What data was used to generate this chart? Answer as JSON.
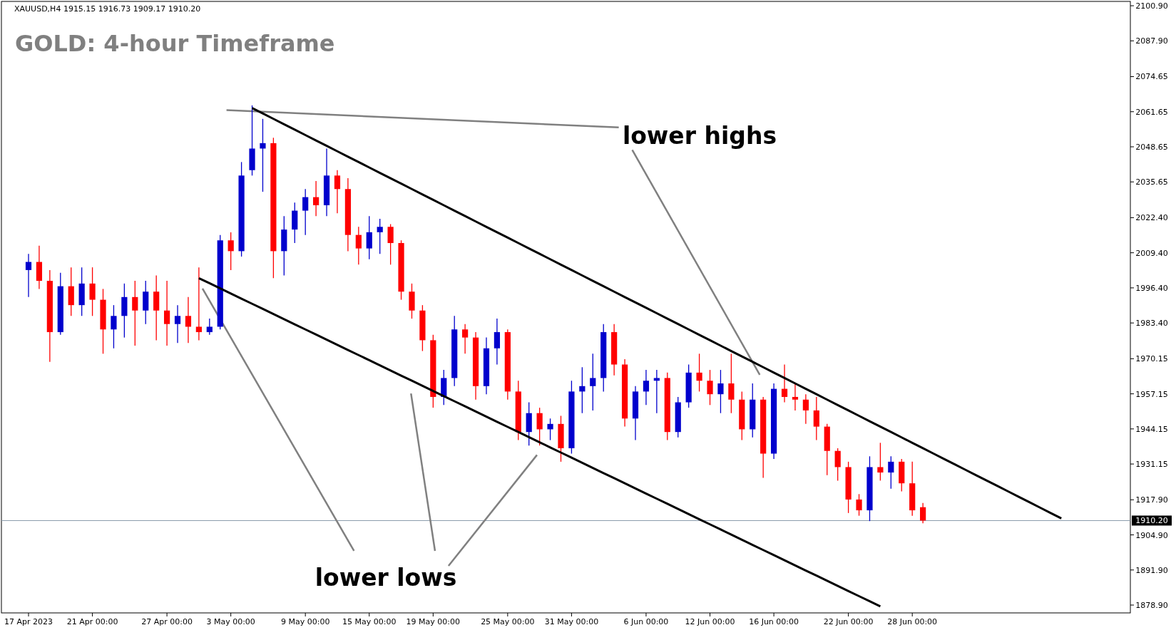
{
  "chart_data": {
    "type": "candlestick",
    "title": "GOLD: 4-hour Timeframe",
    "annotations": [
      "XAUUSD,H4  1915.15 1916.73 1909.17 1910.20",
      "lower highs",
      "lower lows"
    ],
    "categories": [
      "17 Apr 2023",
      null,
      null,
      null,
      null,
      null,
      "21 Apr 00:00",
      null,
      null,
      null,
      null,
      null,
      null,
      "27 Apr 00:00",
      null,
      null,
      null,
      null,
      null,
      "3 May 00:00",
      null,
      null,
      null,
      null,
      null,
      null,
      "9 May 00:00",
      null,
      null,
      null,
      null,
      null,
      "15 May 00:00",
      null,
      null,
      null,
      null,
      null,
      "19 May 00:00",
      null,
      null,
      null,
      null,
      null,
      null,
      "25 May 00:00",
      null,
      null,
      null,
      null,
      null,
      "31 May 00:00",
      null,
      null,
      null,
      null,
      null,
      null,
      "6 Jun 00:00",
      null,
      null,
      null,
      null,
      null,
      "12 Jun 00:00",
      null,
      null,
      null,
      null,
      null,
      "16 Jun 00:00",
      null,
      null,
      null,
      null,
      null,
      null,
      "22 Jun 00:00",
      null,
      null,
      null,
      null,
      null,
      "28 Jun 00:00",
      null,
      null,
      null,
      null,
      null,
      null,
      null,
      null,
      null,
      null,
      null,
      null,
      null,
      null
    ],
    "ohlc": [
      [
        2003,
        2009,
        1993,
        2006
      ],
      [
        2006,
        2012,
        1996,
        1999
      ],
      [
        1999,
        2003,
        1969,
        1980
      ],
      [
        1980,
        2002,
        1979,
        1997
      ],
      [
        1997,
        2004,
        1986,
        1990
      ],
      [
        1990,
        2004,
        1986,
        1998
      ],
      [
        1998,
        2004,
        1986,
        1992
      ],
      [
        1992,
        1996,
        1972,
        1981
      ],
      [
        1981,
        1990,
        1974,
        1986
      ],
      [
        1986,
        1998,
        1978,
        1993
      ],
      [
        1993,
        1999,
        1975,
        1988
      ],
      [
        1988,
        1999,
        1983,
        1995
      ],
      [
        1995,
        2001,
        1977,
        1988
      ],
      [
        1988,
        1999,
        1975,
        1983
      ],
      [
        1983,
        1990,
        1976,
        1986
      ],
      [
        1986,
        1993,
        1976,
        1982
      ],
      [
        1982,
        2004,
        1977,
        1980
      ],
      [
        1980,
        1985,
        1979,
        1982
      ],
      [
        1982,
        2016,
        1981,
        2014
      ],
      [
        2014,
        2017,
        2003,
        2010
      ],
      [
        2010,
        2043,
        2008,
        2038
      ],
      [
        2040,
        2064,
        2038,
        2048
      ],
      [
        2048,
        2059,
        2032,
        2050
      ],
      [
        2050,
        2052,
        2000,
        2010
      ],
      [
        2010,
        2023,
        2001,
        2018
      ],
      [
        2018,
        2028,
        2013,
        2025
      ],
      [
        2025,
        2033,
        2016,
        2030
      ],
      [
        2030,
        2036,
        2023,
        2027
      ],
      [
        2027,
        2048,
        2023,
        2038
      ],
      [
        2038,
        2040,
        2024,
        2033
      ],
      [
        2033,
        2037,
        2010,
        2016
      ],
      [
        2016,
        2019,
        2005,
        2011
      ],
      [
        2011,
        2023,
        2007,
        2017
      ],
      [
        2017,
        2022,
        2009,
        2019
      ],
      [
        2019,
        2020,
        2005,
        2013
      ],
      [
        2013,
        2014,
        1992,
        1995
      ],
      [
        1995,
        1998,
        1985,
        1988
      ],
      [
        1988,
        1990,
        1973,
        1977
      ],
      [
        1977,
        1979,
        1952,
        1956
      ],
      [
        1956,
        1966,
        1953,
        1963
      ],
      [
        1963,
        1986,
        1960,
        1981
      ],
      [
        1981,
        1983,
        1972,
        1978
      ],
      [
        1978,
        1980,
        1955,
        1960
      ],
      [
        1960,
        1978,
        1957,
        1974
      ],
      [
        1974,
        1985,
        1968,
        1980
      ],
      [
        1980,
        1981,
        1955,
        1958
      ],
      [
        1958,
        1962,
        1940,
        1943
      ],
      [
        1943,
        1954,
        1938,
        1950
      ],
      [
        1950,
        1952,
        1938,
        1944
      ],
      [
        1944,
        1948,
        1940,
        1946
      ],
      [
        1946,
        1949,
        1932,
        1937
      ],
      [
        1937,
        1962,
        1935,
        1958
      ],
      [
        1958,
        1967,
        1950,
        1960
      ],
      [
        1960,
        1972,
        1951,
        1963
      ],
      [
        1963,
        1983,
        1958,
        1980
      ],
      [
        1980,
        1983,
        1964,
        1968
      ],
      [
        1968,
        1970,
        1945,
        1948
      ],
      [
        1948,
        1960,
        1940,
        1958
      ],
      [
        1958,
        1966,
        1953,
        1962
      ],
      [
        1962,
        1966,
        1950,
        1963
      ],
      [
        1963,
        1965,
        1940,
        1943
      ],
      [
        1943,
        1956,
        1941,
        1954
      ],
      [
        1954,
        1968,
        1952,
        1965
      ],
      [
        1965,
        1972,
        1958,
        1962
      ],
      [
        1962,
        1966,
        1953,
        1957
      ],
      [
        1957,
        1966,
        1950,
        1961
      ],
      [
        1961,
        1972,
        1950,
        1955
      ],
      [
        1955,
        1958,
        1940,
        1944
      ],
      [
        1944,
        1961,
        1941,
        1955
      ],
      [
        1955,
        1956,
        1926,
        1935
      ],
      [
        1935,
        1961,
        1933,
        1959
      ],
      [
        1959,
        1968,
        1954,
        1956
      ],
      [
        1956,
        1961,
        1951,
        1955
      ],
      [
        1955,
        1957,
        1946,
        1951
      ],
      [
        1951,
        1956,
        1940,
        1945
      ],
      [
        1945,
        1946,
        1927,
        1936
      ],
      [
        1936,
        1937,
        1925,
        1930
      ],
      [
        1930,
        1932,
        1913,
        1918
      ],
      [
        1918,
        1920,
        1912,
        1914
      ],
      [
        1914,
        1934,
        1910,
        1930
      ],
      [
        1930,
        1939,
        1925,
        1928
      ],
      [
        1928,
        1934,
        1922,
        1932
      ],
      [
        1932,
        1933,
        1921,
        1924
      ],
      [
        1924,
        1932,
        1912,
        1914
      ],
      [
        1915.15,
        1916.73,
        1909.17,
        1910.2
      ],
      null,
      null,
      null,
      null,
      null,
      null,
      null,
      null,
      null,
      null,
      null,
      null,
      null
    ],
    "series": [
      {
        "type": "line",
        "color": "#000000",
        "values": [
          null,
          null,
          null,
          null,
          null,
          null,
          null,
          null,
          null,
          null,
          null,
          null,
          null,
          null,
          null,
          null,
          null,
          null,
          null,
          null,
          null,
          2063,
          2061,
          2059,
          2057,
          2055,
          2053,
          2051,
          2049,
          2047,
          2045,
          2043,
          2041,
          2039,
          2037,
          2035,
          2033,
          2031,
          2029,
          2027,
          2025,
          2023,
          2021,
          2019,
          2017,
          2015,
          2013,
          2011,
          2009,
          2007,
          2005,
          2003,
          2001,
          1999,
          1997,
          1995,
          1993,
          1991,
          1989,
          1987,
          1985,
          1983,
          1981,
          1979,
          1977,
          1975,
          1973,
          1971,
          1969,
          1967,
          1965,
          1963,
          1961,
          1959,
          1957,
          1955,
          1953,
          1951,
          1949,
          1947,
          1945,
          1943,
          1941,
          1939,
          1937,
          1935,
          1933,
          1931,
          1929,
          1927,
          1925,
          1923,
          1921,
          1919,
          1917,
          1915,
          1913,
          1911
        ]
      },
      {
        "type": "line",
        "color": "#000000",
        "values": [
          null,
          null,
          null,
          null,
          null,
          null,
          null,
          null,
          null,
          null,
          null,
          null,
          null,
          null,
          null,
          null,
          2000,
          1998.1,
          1996.2,
          1994.3,
          1992.4,
          1990.5,
          1988.6,
          1986.7,
          1984.8,
          1982.9,
          1981,
          1979.1,
          1977.2,
          1975.3,
          1973.4,
          1971.5,
          1969.6,
          1967.7,
          1965.8,
          1963.9,
          1962,
          1960.1,
          1958.2,
          1956.3,
          1954.4,
          1952.5,
          1950.6,
          1948.7,
          1946.8,
          1944.9,
          1943,
          1941.1,
          1939.2,
          1937.3,
          1935.4,
          1933.5,
          1931.6,
          1929.7,
          1927.8,
          1925.9,
          1924,
          1922.1,
          1920.2,
          1918.3,
          1916.4,
          1914.5,
          1912.6,
          1910.7,
          1908.8,
          1906.9,
          1905,
          1903.1,
          1901.2,
          1899.3,
          1897.4,
          1895.5,
          1893.6,
          1891.7,
          1889.8,
          1887.9,
          1886,
          1884.1,
          1882.2,
          1880.3,
          1878.4,
          null,
          null,
          null,
          null,
          null,
          null,
          null,
          null,
          null,
          null,
          null,
          null,
          null,
          null,
          null,
          null,
          null
        ]
      }
    ],
    "ylim": [
      1876,
      2102.5
    ],
    "yticks": [
      {
        "value": 2100.9,
        "label": "2100.90"
      },
      {
        "value": 2087.9,
        "label": "2087.90"
      },
      {
        "value": 2074.65,
        "label": "2074.65"
      },
      {
        "value": 2061.65,
        "label": "2061.65"
      },
      {
        "value": 2048.65,
        "label": "2048.65"
      },
      {
        "value": 2035.65,
        "label": "2035.65"
      },
      {
        "value": 2022.4,
        "label": "2022.40"
      },
      {
        "value": 2009.4,
        "label": "2009.40"
      },
      {
        "value": 1996.4,
        "label": "1996.40"
      },
      {
        "value": 1983.4,
        "label": "1983.40"
      },
      {
        "value": 1970.15,
        "label": "1970.15"
      },
      {
        "value": 1957.15,
        "label": "1957.15"
      },
      {
        "value": 1944.15,
        "label": "1944.15"
      },
      {
        "value": 1931.15,
        "label": "1931.15"
      },
      {
        "value": 1917.9,
        "label": "1917.90"
      },
      {
        "value": 1904.9,
        "label": "1904.90"
      },
      {
        "value": 1891.9,
        "label": "1891.90"
      },
      {
        "value": 1878.9,
        "label": "1878.90"
      }
    ],
    "ref_lines": [
      {
        "axis": "y",
        "value": 1910.2,
        "label": "1910.20",
        "color": "#8899aa"
      }
    ],
    "grid": false
  }
}
